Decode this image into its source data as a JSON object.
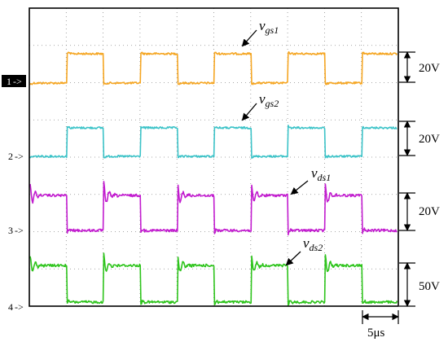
{
  "chart_data": {
    "type": "line",
    "title": "",
    "xlabel": "",
    "ylabel": "",
    "grid": true,
    "colors": {
      "vgs1": "#f5a623",
      "vgs2": "#3cc3c8",
      "vds1": "#c21ccf",
      "vds2": "#2ec41c",
      "grid": "#8a8a8a",
      "frame": "#000000"
    },
    "channels": [
      {
        "id": "ch1",
        "marker": "1",
        "label_main": "v",
        "label_sub": "gs1",
        "scale": "20V",
        "signal": "gate",
        "phase": 0
      },
      {
        "id": "ch2",
        "marker": "2",
        "label_main": "v",
        "label_sub": "gs2",
        "scale": "20V",
        "signal": "gate",
        "phase": 0
      },
      {
        "id": "ch3",
        "marker": "3",
        "label_main": "v",
        "label_sub": "ds1",
        "scale": "20V",
        "signal": "drain",
        "phase": 1
      },
      {
        "id": "ch4",
        "marker": "4",
        "label_main": "v",
        "label_sub": "ds2",
        "scale": "50V",
        "signal": "drain",
        "phase": 1
      }
    ],
    "marker_suffix": "->",
    "time_scale": "5μs",
    "x_divisions": 10,
    "y_divisions": 8,
    "period_divisions": 2.0
  }
}
